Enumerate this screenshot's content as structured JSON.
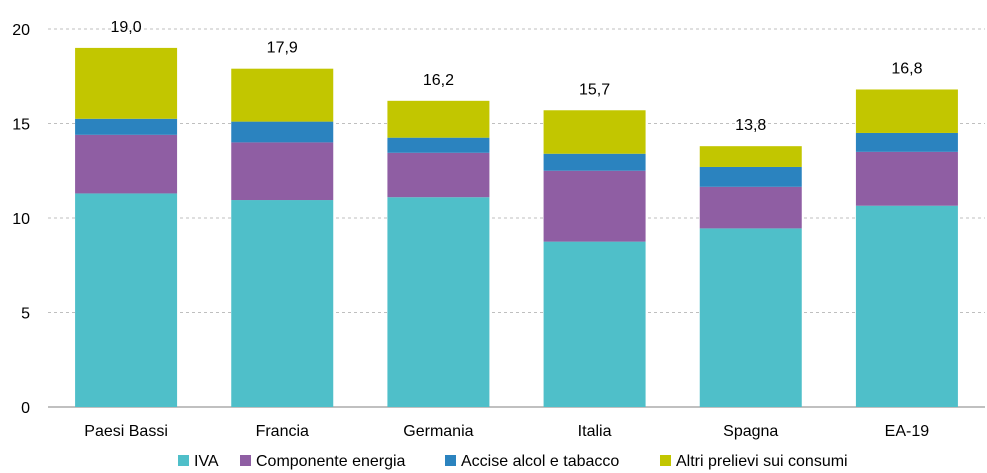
{
  "chart_data": {
    "type": "bar",
    "stacked": true,
    "categories": [
      "Paesi Bassi",
      "Francia",
      "Germania",
      "Italia",
      "Spagna",
      "EA-19"
    ],
    "series": [
      {
        "name": "IVA",
        "color": "#4fbfc9",
        "values": [
          11.3,
          10.95,
          11.1,
          8.75,
          9.45,
          10.65
        ]
      },
      {
        "name": "Componente energia",
        "color": "#8f5ea3",
        "values": [
          3.1,
          3.05,
          2.35,
          3.75,
          2.2,
          2.85
        ]
      },
      {
        "name": "Accise alcol e tabacco",
        "color": "#2b83bf",
        "values": [
          0.85,
          1.1,
          0.8,
          0.9,
          1.05,
          1.0
        ]
      },
      {
        "name": "Altri prelievi sui consumi",
        "color": "#c2c600",
        "values": [
          3.75,
          2.8,
          1.95,
          2.3,
          1.1,
          2.3
        ]
      }
    ],
    "totals": [
      "19,0",
      "17,9",
      "16,2",
      "15,7",
      "13,8",
      "16,8"
    ],
    "ylim": [
      0,
      20
    ],
    "yticks": [
      0,
      5,
      10,
      15,
      20
    ],
    "grid": true,
    "legend_position": "bottom",
    "title": "",
    "xlabel": "",
    "ylabel": ""
  }
}
